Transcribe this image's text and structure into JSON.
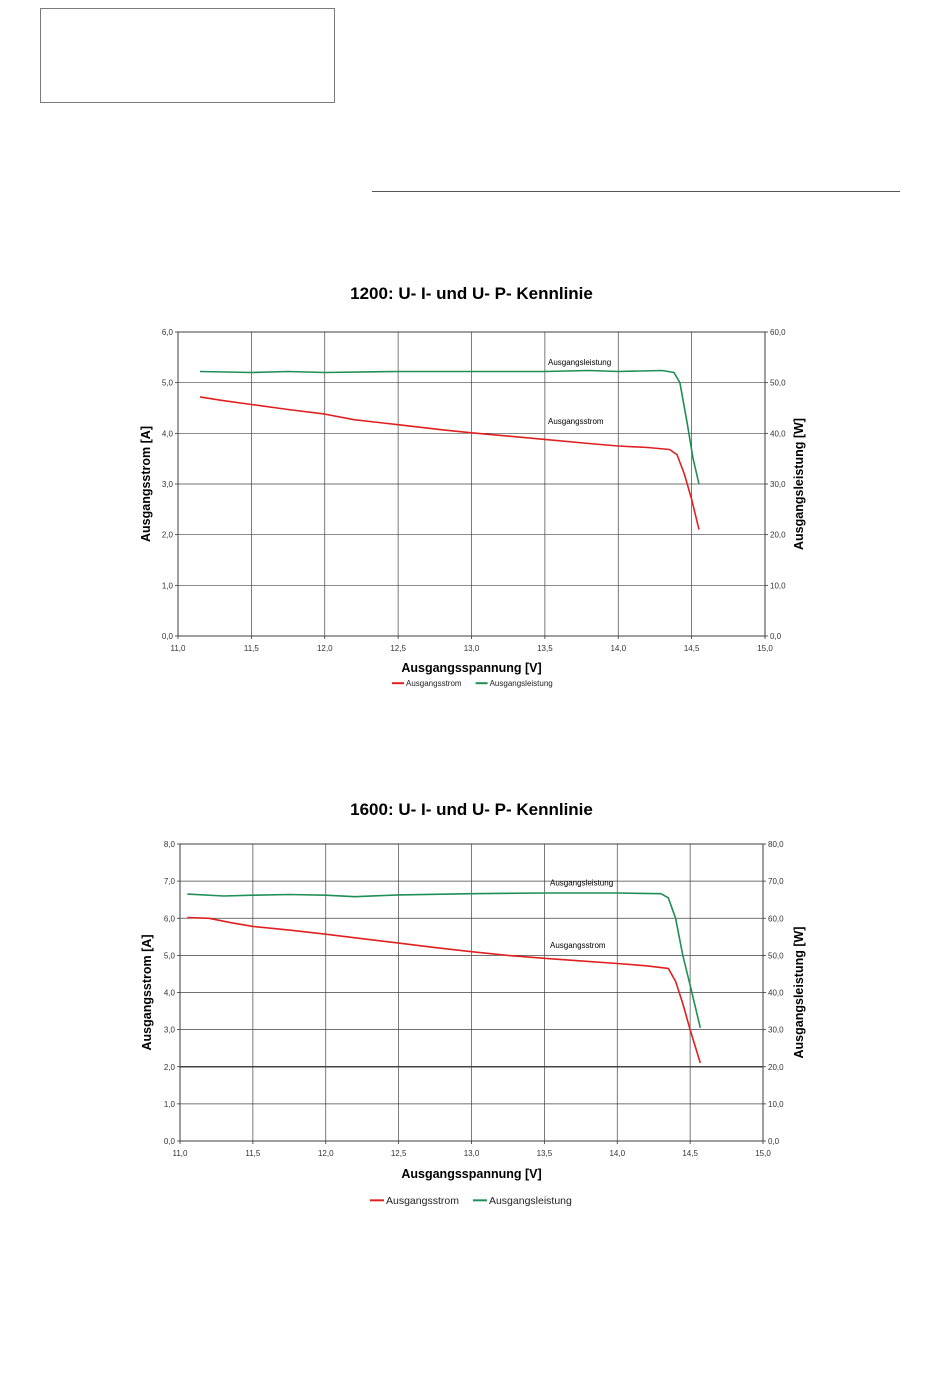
{
  "charts": [
    {
      "type": "line",
      "title": "1200: U- I- und U- P- Kennlinie",
      "xlabel": "Ausgangsspannung [V]",
      "ylabel": "Ausgangsstrom [A]",
      "y2label": "Ausgangsleistung [W]",
      "xlim": [
        11.0,
        15.0
      ],
      "ylim": [
        0.0,
        6.0
      ],
      "y2lim": [
        0.0,
        60.0
      ],
      "x_ticks": [
        "11,0",
        "11,5",
        "12,0",
        "12,5",
        "13,0",
        "13,5",
        "14,0",
        "14,5",
        "15,0"
      ],
      "y_ticks": [
        "0,0",
        "1,0",
        "2,0",
        "3,0",
        "4,0",
        "5,0",
        "6,0"
      ],
      "y2_ticks": [
        "0,0",
        "10,0",
        "20,0",
        "30,0",
        "40,0",
        "50,0",
        "60,0"
      ],
      "grid": true,
      "legend_position": "bottom-center",
      "annotations": {
        "power": "Ausgangsleistung",
        "current": "Ausgangsstrom"
      },
      "series": [
        {
          "name": "Ausgangsstrom",
          "axis": "left",
          "color": "#e02020",
          "x": [
            11.15,
            11.3,
            11.5,
            11.75,
            12.0,
            12.2,
            12.5,
            12.8,
            13.0,
            13.2,
            13.5,
            13.8,
            14.0,
            14.2,
            14.35,
            14.4,
            14.45,
            14.5,
            14.55
          ],
          "y": [
            4.72,
            4.65,
            4.57,
            4.47,
            4.38,
            4.27,
            4.17,
            4.07,
            4.01,
            3.96,
            3.88,
            3.8,
            3.75,
            3.72,
            3.68,
            3.58,
            3.2,
            2.7,
            2.1
          ]
        },
        {
          "name": "Ausgangsleistung",
          "axis": "right",
          "color": "#1f8f55",
          "x": [
            11.15,
            11.5,
            11.75,
            12.0,
            12.5,
            13.0,
            13.5,
            13.8,
            14.0,
            14.3,
            14.38,
            14.42,
            14.47,
            14.51,
            14.55
          ],
          "y": [
            52.2,
            52.0,
            52.2,
            52.0,
            52.2,
            52.2,
            52.2,
            52.4,
            52.2,
            52.4,
            52.0,
            50.0,
            42.0,
            35.0,
            30.0
          ]
        }
      ]
    },
    {
      "type": "line",
      "title": "1600: U- I- und U- P- Kennlinie",
      "xlabel": "Ausgangsspannung [V]",
      "ylabel": "Ausgangsstrom [A]",
      "y2label": "Ausgangsleistung [W]",
      "xlim": [
        11.0,
        15.0
      ],
      "ylim": [
        0.0,
        8.0
      ],
      "y2lim": [
        0.0,
        80.0
      ],
      "x_ticks": [
        "11,0",
        "11,5",
        "12,0",
        "12,5",
        "13,0",
        "13,5",
        "14,0",
        "14,5",
        "15,0"
      ],
      "y_ticks": [
        "0,0",
        "1,0",
        "2,0",
        "3,0",
        "4,0",
        "5,0",
        "6,0",
        "7,0",
        "8,0"
      ],
      "y2_ticks": [
        "0,0",
        "10,0",
        "20,0",
        "30,0",
        "40,0",
        "50,0",
        "60,0",
        "70,0",
        "80,0"
      ],
      "grid": true,
      "legend_position": "bottom-center",
      "annotations": {
        "power": "Ausgangsleistung",
        "current": "Ausgangsstrom"
      },
      "series": [
        {
          "name": "Ausgangsstrom",
          "axis": "left",
          "color": "#e02020",
          "x": [
            11.05,
            11.2,
            11.35,
            11.5,
            11.75,
            12.0,
            12.25,
            12.5,
            12.75,
            13.0,
            13.25,
            13.5,
            13.75,
            14.0,
            14.2,
            14.35,
            14.4,
            14.45,
            14.5,
            14.57
          ],
          "y": [
            6.02,
            6.0,
            5.88,
            5.78,
            5.68,
            5.57,
            5.45,
            5.33,
            5.21,
            5.1,
            5.0,
            4.92,
            4.85,
            4.78,
            4.72,
            4.65,
            4.3,
            3.7,
            3.0,
            2.1
          ]
        },
        {
          "name": "Ausgangsleistung",
          "axis": "right",
          "color": "#1f8f55",
          "x": [
            11.05,
            11.3,
            11.5,
            11.75,
            12.0,
            12.2,
            12.5,
            13.0,
            13.5,
            14.0,
            14.3,
            14.35,
            14.4,
            14.45,
            14.5,
            14.57
          ],
          "y": [
            66.5,
            66.0,
            66.2,
            66.4,
            66.2,
            65.8,
            66.3,
            66.6,
            66.8,
            66.8,
            66.6,
            65.5,
            60.0,
            50.0,
            42.0,
            30.5
          ]
        }
      ]
    }
  ]
}
